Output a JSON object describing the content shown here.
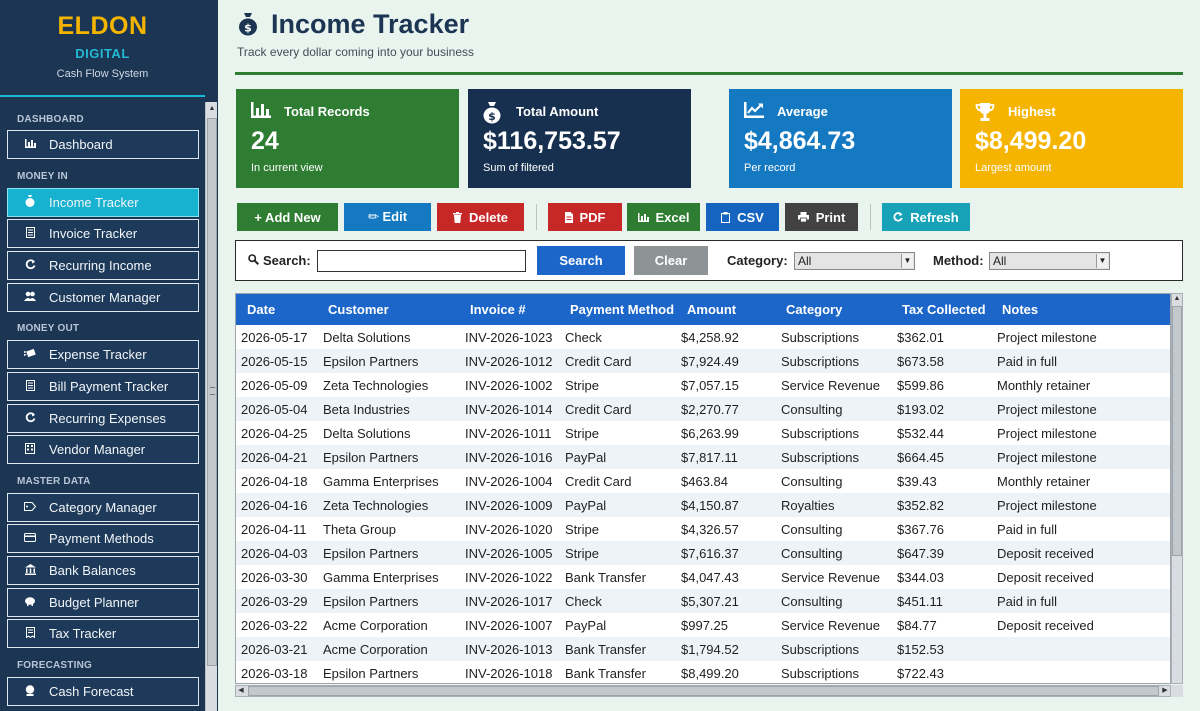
{
  "sidebar": {
    "brand_name": "ELDON",
    "brand_sub": "DIGITAL",
    "brand_tagline": "Cash Flow System",
    "sections": {
      "dashboard": "DASHBOARD",
      "money_in": "MONEY IN",
      "money_out": "MONEY OUT",
      "master_data": "MASTER DATA",
      "forecasting": "FORECASTING"
    },
    "items": {
      "dashboard": {
        "label": "Dashboard",
        "icon": "bar-chart-icon"
      },
      "income_tracker": {
        "label": "Income Tracker",
        "icon": "money-bag-icon"
      },
      "invoice_tracker": {
        "label": "Invoice Tracker",
        "icon": "document-icon"
      },
      "recurring_income": {
        "label": "Recurring Income",
        "icon": "refresh-icon"
      },
      "customer_manager": {
        "label": "Customer Manager",
        "icon": "users-icon"
      },
      "expense_tracker": {
        "label": "Expense Tracker",
        "icon": "money-wings-icon"
      },
      "bill_payment_tracker": {
        "label": "Bill Payment Tracker",
        "icon": "document-icon"
      },
      "recurring_expenses": {
        "label": "Recurring Expenses",
        "icon": "refresh-icon"
      },
      "vendor_manager": {
        "label": "Vendor Manager",
        "icon": "building-icon"
      },
      "category_manager": {
        "label": "Category Manager",
        "icon": "tag-icon"
      },
      "payment_methods": {
        "label": "Payment Methods",
        "icon": "credit-card-icon"
      },
      "bank_balances": {
        "label": "Bank Balances",
        "icon": "bank-icon"
      },
      "budget_planner": {
        "label": "Budget Planner",
        "icon": "piggy-bank-icon"
      },
      "tax_tracker": {
        "label": "Tax Tracker",
        "icon": "receipt-icon"
      },
      "cash_forecast": {
        "label": "Cash Forecast",
        "icon": "crystal-ball-icon"
      }
    },
    "active_item": "Income Tracker"
  },
  "header": {
    "title": "Income Tracker",
    "subtitle": "Track every dollar coming into your business",
    "title_icon": "money-bag-icon"
  },
  "cards": [
    {
      "label": "Total Records",
      "value": "24",
      "caption": "In current view",
      "icon": "bar-chart-icon",
      "color": "#2e7d32"
    },
    {
      "label": "Total Amount",
      "value": "$116,753.57",
      "caption": "Sum of filtered",
      "icon": "money-bag-icon",
      "color": "#17304f"
    },
    {
      "label": "Average",
      "value": "$4,864.73",
      "caption": "Per record",
      "icon": "line-chart-icon",
      "color": "#1579c2"
    },
    {
      "label": "Highest",
      "value": "$8,499.20",
      "caption": "Largest amount",
      "icon": "trophy-icon",
      "color": "#f4b400"
    }
  ],
  "toolbar": {
    "add_new": "+ Add New",
    "edit": "✏ Edit",
    "delete": "Delete",
    "pdf": "PDF",
    "excel": "Excel",
    "csv": "CSV",
    "print": "Print",
    "refresh": "Refresh",
    "colors": {
      "add_new": "#2e7d32",
      "edit": "#1579c2",
      "delete": "#c62828",
      "pdf": "#c62828",
      "excel": "#2e7d32",
      "csv": "#1565c0",
      "print": "#424242",
      "refresh": "#17a2b8"
    }
  },
  "search": {
    "label": "Search:",
    "value": "",
    "search_button": "Search",
    "clear_button": "Clear",
    "category_label": "Category:",
    "category_value": "All",
    "method_label": "Method:",
    "method_value": "All"
  },
  "table": {
    "columns": [
      "Date",
      "Customer",
      "Invoice #",
      "Payment Method",
      "Amount",
      "Category",
      "Tax Collected",
      "Notes"
    ],
    "rows": [
      [
        "2026-05-17",
        "Delta Solutions",
        "INV-2026-1023",
        "Check",
        "$4,258.92",
        "Subscriptions",
        "$362.01",
        "Project milestone"
      ],
      [
        "2026-05-15",
        "Epsilon Partners",
        "INV-2026-1012",
        "Credit Card",
        "$7,924.49",
        "Subscriptions",
        "$673.58",
        "Paid in full"
      ],
      [
        "2026-05-09",
        "Zeta Technologies",
        "INV-2026-1002",
        "Stripe",
        "$7,057.15",
        "Service Revenue",
        "$599.86",
        "Monthly retainer"
      ],
      [
        "2026-05-04",
        "Beta Industries",
        "INV-2026-1014",
        "Credit Card",
        "$2,270.77",
        "Consulting",
        "$193.02",
        "Project milestone"
      ],
      [
        "2026-04-25",
        "Delta Solutions",
        "INV-2026-1011",
        "Stripe",
        "$6,263.99",
        "Subscriptions",
        "$532.44",
        "Project milestone"
      ],
      [
        "2026-04-21",
        "Epsilon Partners",
        "INV-2026-1016",
        "PayPal",
        "$7,817.11",
        "Subscriptions",
        "$664.45",
        "Project milestone"
      ],
      [
        "2026-04-18",
        "Gamma Enterprises",
        "INV-2026-1004",
        "Credit Card",
        "$463.84",
        "Consulting",
        "$39.43",
        "Monthly retainer"
      ],
      [
        "2026-04-16",
        "Zeta Technologies",
        "INV-2026-1009",
        "PayPal",
        "$4,150.87",
        "Royalties",
        "$352.82",
        "Project milestone"
      ],
      [
        "2026-04-11",
        "Theta Group",
        "INV-2026-1020",
        "Stripe",
        "$4,326.57",
        "Consulting",
        "$367.76",
        "Paid in full"
      ],
      [
        "2026-04-03",
        "Epsilon Partners",
        "INV-2026-1005",
        "Stripe",
        "$7,616.37",
        "Consulting",
        "$647.39",
        "Deposit received"
      ],
      [
        "2026-03-30",
        "Gamma Enterprises",
        "INV-2026-1022",
        "Bank Transfer",
        "$4,047.43",
        "Service Revenue",
        "$344.03",
        "Deposit received"
      ],
      [
        "2026-03-29",
        "Epsilon Partners",
        "INV-2026-1017",
        "Check",
        "$5,307.21",
        "Consulting",
        "$451.11",
        "Paid in full"
      ],
      [
        "2026-03-22",
        "Acme Corporation",
        "INV-2026-1007",
        "PayPal",
        "$997.25",
        "Service Revenue",
        "$84.77",
        "Deposit received"
      ],
      [
        "2026-03-21",
        "Acme Corporation",
        "INV-2026-1013",
        "Bank Transfer",
        "$1,794.52",
        "Subscriptions",
        "$152.53",
        ""
      ],
      [
        "2026-03-18",
        "Epsilon Partners",
        "INV-2026-1018",
        "Bank Transfer",
        "$8,499.20",
        "Subscriptions",
        "$722.43",
        ""
      ]
    ]
  }
}
